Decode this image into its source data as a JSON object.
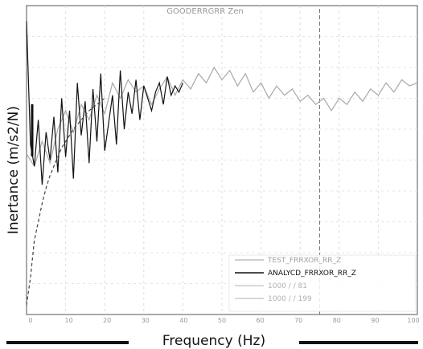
{
  "chart_data": {
    "type": "line",
    "title": "GOODERRGRR Zen",
    "xlabel": "Frequency (Hz)",
    "ylabel": "Inertance (m/s2/N)",
    "x_tick_labels": [
      "0",
      "10",
      "20",
      "30",
      "40",
      "50",
      "60",
      "70",
      "80",
      "90",
      "100"
    ],
    "xlim": [
      0,
      100
    ],
    "ylim": [
      0,
      10
    ],
    "grid": true,
    "legend_position": "bottom-right",
    "cursor_x": 75,
    "legend": [
      {
        "label": "TEST_FRRXOR_RR_Z",
        "color": "#a0a0a0"
      },
      {
        "label": "ANALYCD_FRRXOR_RR_Z",
        "color": "#111111"
      },
      {
        "label": "1000 / / 81",
        "color": "#b0b0b0"
      },
      {
        "label": "1000 / / 199",
        "color": "#b0b0b0"
      }
    ],
    "series": [
      {
        "color": "#a8a8a8",
        "x": [
          0,
          2,
          4,
          6,
          8,
          10,
          12,
          14,
          16,
          18,
          20,
          22,
          24,
          26,
          28,
          30,
          32,
          34,
          36,
          38,
          40,
          42,
          44,
          46,
          48,
          50,
          52,
          54,
          56,
          58,
          60,
          62,
          64,
          66,
          68,
          70,
          72,
          74,
          76,
          78,
          80,
          82,
          84,
          86,
          88,
          90,
          92,
          94,
          96,
          98,
          100
        ],
        "y": [
          5.2,
          4.8,
          5.6,
          4.9,
          6.0,
          6.6,
          5.9,
          6.8,
          6.3,
          7.1,
          6.5,
          7.5,
          7.0,
          7.6,
          7.2,
          7.4,
          6.8,
          7.3,
          7.7,
          7.1,
          7.6,
          7.3,
          7.8,
          7.5,
          8.0,
          7.6,
          7.9,
          7.4,
          7.8,
          7.2,
          7.5,
          7.0,
          7.4,
          7.1,
          7.3,
          6.9,
          7.1,
          6.8,
          7.0,
          6.6,
          7.0,
          6.8,
          7.2,
          6.9,
          7.3,
          7.1,
          7.5,
          7.2,
          7.6,
          7.4,
          7.5
        ]
      },
      {
        "color": "#111111",
        "x": [
          0,
          1,
          2,
          3,
          4,
          5,
          6,
          7,
          8,
          9,
          10,
          11,
          12,
          13,
          14,
          15,
          16,
          17,
          18,
          19,
          20,
          21,
          22,
          23,
          24,
          25,
          26,
          27,
          28,
          29,
          30,
          31,
          32,
          33,
          34,
          35,
          36,
          37,
          38,
          39,
          40
        ],
        "y": [
          9.5,
          5.5,
          4.8,
          6.3,
          4.2,
          5.9,
          5.0,
          6.4,
          4.6,
          7.0,
          5.1,
          6.6,
          4.4,
          7.5,
          5.8,
          6.9,
          4.9,
          7.3,
          5.6,
          7.8,
          5.3,
          6.2,
          7.1,
          5.5,
          7.9,
          6.0,
          7.2,
          6.5,
          7.6,
          6.3,
          7.4,
          7.0,
          6.6,
          7.2,
          7.5,
          6.8,
          7.7,
          7.1,
          7.4,
          7.2,
          7.5
        ]
      },
      {
        "color": "#444444",
        "x": [
          0,
          1,
          2,
          3,
          4,
          5,
          6,
          7,
          8,
          9,
          10,
          12,
          14,
          16,
          18,
          20
        ],
        "y": [
          0.3,
          1.2,
          2.4,
          3.0,
          3.6,
          4.1,
          4.5,
          4.8,
          5.1,
          5.4,
          5.6,
          6.0,
          6.3,
          6.6,
          6.8,
          7.0
        ]
      }
    ]
  }
}
